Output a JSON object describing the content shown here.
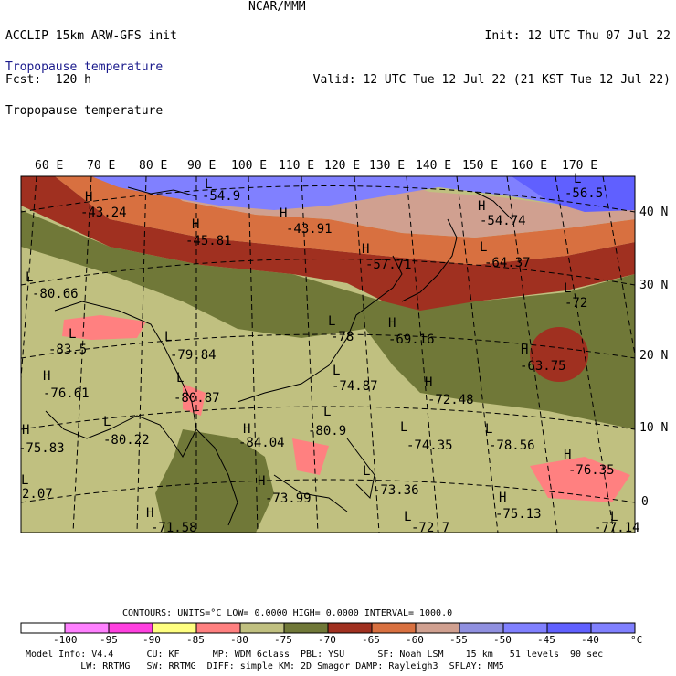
{
  "header": {
    "left_line1": "ACCLIP 15km ARW-GFS init",
    "left_line2": "Fcst:  120 h",
    "center": "NCAR/MMM",
    "right_line1": "Init: 12 UTC Thu 07 Jul 22",
    "right_line2": "Valid: 12 UTC Tue 12 Jul 22 (21 KST Tue 12 Jul 22)",
    "field_title_color": "Tropopause temperature",
    "field_title_black": "Tropopause temperature"
  },
  "map": {
    "lon_labels": [
      "60 E",
      "70 E",
      "80 E",
      "90 E",
      "100 E",
      "110 E",
      "120 E",
      "130 E",
      "140 E",
      "150 E",
      "160 E",
      "170 E"
    ],
    "lat_labels": [
      "40 N",
      "30 N",
      "20 N",
      "10 N",
      "0"
    ],
    "extrema": [
      {
        "type": "H",
        "value": "-43.24"
      },
      {
        "type": "L",
        "value": "-54.9"
      },
      {
        "type": "H",
        "value": "-45.81"
      },
      {
        "type": "H",
        "value": "-43.91"
      },
      {
        "type": "H",
        "value": "-57.71"
      },
      {
        "type": "H",
        "value": "-54.74"
      },
      {
        "type": "L",
        "value": "-56.5"
      },
      {
        "type": "L",
        "value": "-64.37"
      },
      {
        "type": "L",
        "value": "-80.66"
      },
      {
        "type": "L",
        "value": "-72"
      },
      {
        "type": "L",
        "value": "-83.5"
      },
      {
        "type": "L",
        "value": "-78"
      },
      {
        "type": "H",
        "value": "-69.16"
      },
      {
        "type": "L",
        "value": "-79.84"
      },
      {
        "type": "H",
        "value": "-63.75"
      },
      {
        "type": "H",
        "value": "-76.61"
      },
      {
        "type": "L",
        "value": "-80.87"
      },
      {
        "type": "L",
        "value": "-74.87"
      },
      {
        "type": "H",
        "value": "-72.48"
      },
      {
        "type": "H",
        "value": "-75.83"
      },
      {
        "type": "L",
        "value": "-80.22"
      },
      {
        "type": "L",
        "value": "-80.9"
      },
      {
        "type": "L",
        "value": "-74.35"
      },
      {
        "type": "L",
        "value": "-78.56"
      },
      {
        "type": "H",
        "value": "-84.04"
      },
      {
        "type": "H",
        "value": "-76.35"
      },
      {
        "type": "H",
        "value": "-73.99"
      },
      {
        "type": "L",
        "value": "-73.36"
      },
      {
        "type": "H",
        "value": "-75.13"
      },
      {
        "type": "L",
        "value": "2.07"
      },
      {
        "type": "H",
        "value": "-71.58"
      },
      {
        "type": "L",
        "value": "-72.7"
      },
      {
        "type": "L",
        "value": "-77.14"
      }
    ],
    "colors": {
      "below_neg100": "#ffffff",
      "neg100_neg95": "#ff80ff",
      "neg95_neg90": "#ff40e0",
      "neg90_neg85": "#ffff80",
      "neg85_neg80": "#ff8080",
      "neg80_neg75": "#c0c080",
      "neg75_neg70": "#707838",
      "neg70_neg65": "#a03020",
      "neg65_neg60": "#d87040",
      "neg60_neg55": "#d0a090",
      "neg55_neg50": "#9090e0",
      "neg50_neg45": "#8080ff",
      "neg45_neg40": "#6060ff",
      "above_neg40": "#8080ff"
    }
  },
  "legend": {
    "contours_label": "CONTOURS:",
    "units_label": "UNITS=°C",
    "low_label": "LOW=",
    "low_value": "0.0000",
    "high_label": "HIGH=",
    "high_value": "0.0000",
    "interval_label": "INTERVAL=",
    "interval_value": "1000.0",
    "ticks": [
      "-100",
      "-95",
      "-90",
      "-85",
      "-80",
      "-75",
      "-70",
      "-65",
      "-60",
      "-55",
      "-50",
      "-45",
      "-40",
      "°C"
    ]
  },
  "footer": {
    "line1": "Model Info: V4.4      CU: KF      MP: WDM 6class  PBL: YSU      SF: Noah LSM    15 km   51 levels  90 sec",
    "line2": "          LW: RRTMG   SW: RRTMG  DIFF: simple KM: 2D Smagor DAMP: Rayleigh3  SFLAY: MM5"
  }
}
